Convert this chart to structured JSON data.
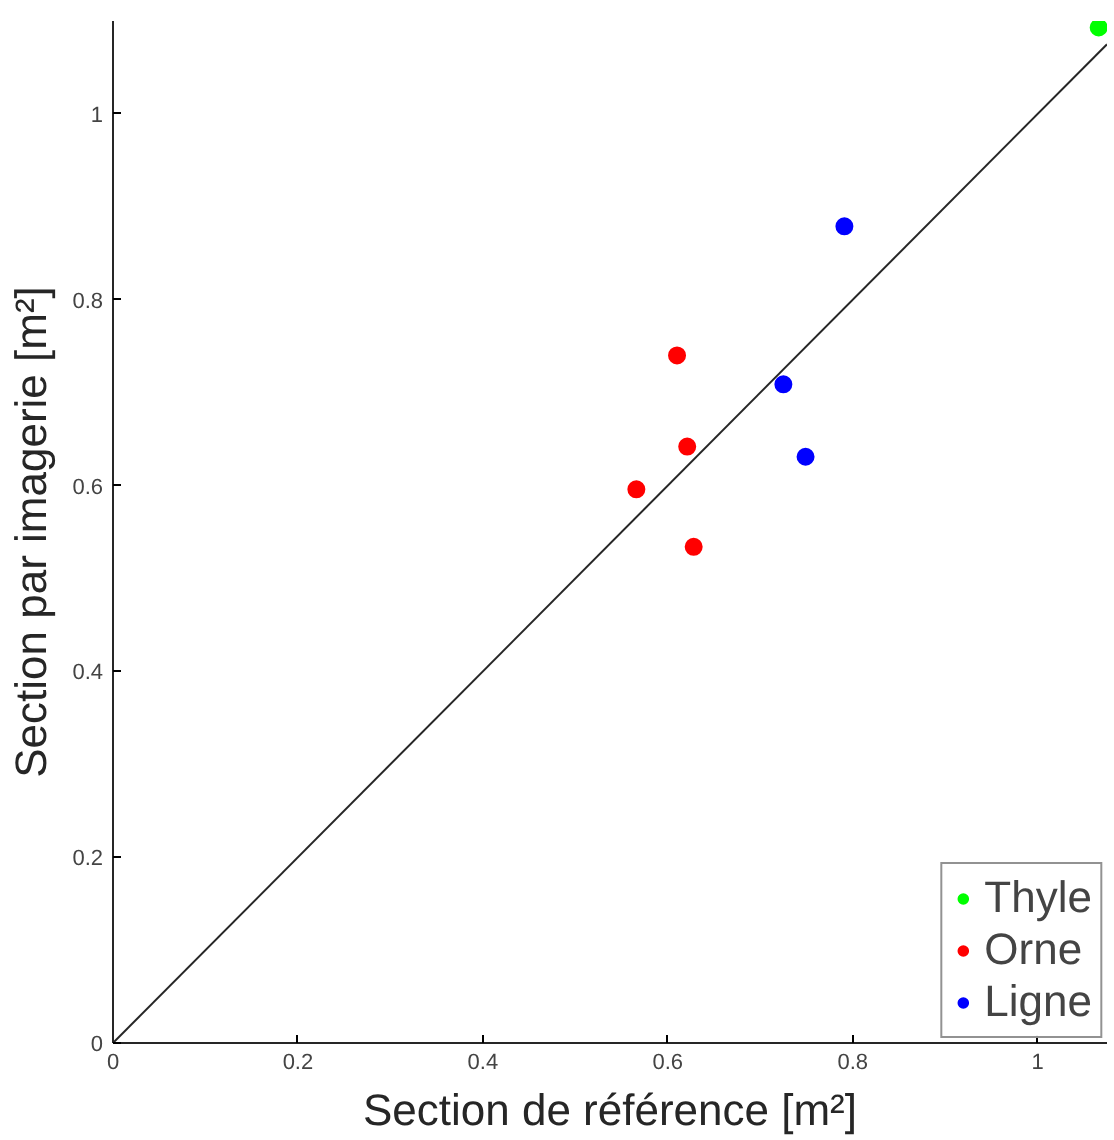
{
  "chart_data": {
    "type": "scatter",
    "xlabel": "Section de référence [m²]",
    "ylabel": "Section par imagerie [m²]",
    "xlim": [
      0,
      1.075
    ],
    "ylim": [
      0,
      1.1
    ],
    "xticks": [
      0,
      0.2,
      0.4,
      0.6,
      0.8,
      1
    ],
    "yticks": [
      0,
      0.2,
      0.4,
      0.6,
      0.8,
      1
    ],
    "grid": false,
    "legend": "bottom right",
    "marker": "circle",
    "series": [
      {
        "name": "Thyle",
        "color": "#00ff00",
        "x": [
          1.066
        ],
        "values": [
          1.093
        ]
      },
      {
        "name": "Orne",
        "color": "#ff0000",
        "x": [
          0.61,
          0.621,
          0.566,
          0.628
        ],
        "values": [
          0.74,
          0.642,
          0.596,
          0.534
        ]
      },
      {
        "name": "Ligne",
        "color": "#0000ff",
        "x": [
          0.791,
          0.725,
          0.749
        ],
        "values": [
          0.879,
          0.709,
          0.631
        ]
      },
      {
        "type": "line",
        "marker": "none",
        "color": "#262626",
        "x": [
          0,
          1.075
        ],
        "values": [
          0,
          1.075
        ]
      }
    ]
  }
}
